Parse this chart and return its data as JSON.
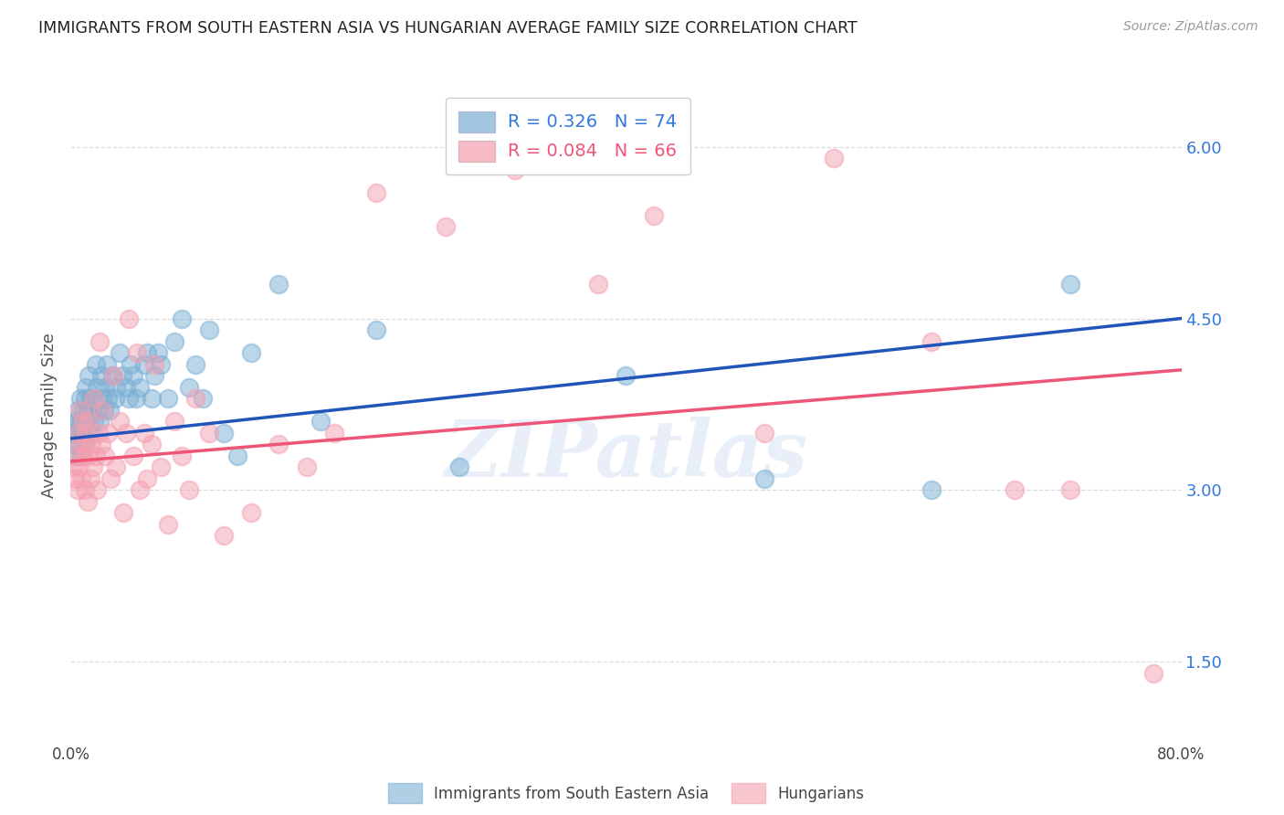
{
  "title": "IMMIGRANTS FROM SOUTH EASTERN ASIA VS HUNGARIAN AVERAGE FAMILY SIZE CORRELATION CHART",
  "source": "Source: ZipAtlas.com",
  "ylabel": "Average Family Size",
  "right_yticks": [
    1.5,
    3.0,
    4.5,
    6.0
  ],
  "right_ytick_labels": [
    "1.50",
    "3.00",
    "4.50",
    "6.00"
  ],
  "blue_R": 0.326,
  "blue_N": 74,
  "pink_R": 0.084,
  "pink_N": 66,
  "blue_color": "#7BAFD4",
  "pink_color": "#F4A0B0",
  "blue_line_color": "#2255BB",
  "pink_line_color": "#EE5577",
  "legend1_label": "Immigrants from South Eastern Asia",
  "legend2_label": "Hungarians",
  "title_color": "#222222",
  "right_tick_color": "#3377DD",
  "watermark_text": "ZIPatlas",
  "xmin": 0.0,
  "xmax": 0.8,
  "ymin": 0.8,
  "ymax": 6.5,
  "blue_line_x0": 0.0,
  "blue_line_y0": 3.45,
  "blue_line_x1": 0.8,
  "blue_line_y1": 4.5,
  "pink_line_x0": 0.0,
  "pink_line_y0": 3.25,
  "pink_line_x1": 0.8,
  "pink_line_y1": 4.05,
  "blue_scatter_x": [
    0.002,
    0.003,
    0.004,
    0.004,
    0.005,
    0.005,
    0.006,
    0.006,
    0.007,
    0.007,
    0.008,
    0.008,
    0.009,
    0.009,
    0.01,
    0.01,
    0.01,
    0.011,
    0.011,
    0.012,
    0.012,
    0.013,
    0.013,
    0.014,
    0.015,
    0.015,
    0.016,
    0.017,
    0.018,
    0.019,
    0.02,
    0.021,
    0.022,
    0.023,
    0.024,
    0.025,
    0.026,
    0.027,
    0.028,
    0.03,
    0.032,
    0.033,
    0.035,
    0.037,
    0.04,
    0.042,
    0.043,
    0.045,
    0.047,
    0.05,
    0.053,
    0.055,
    0.058,
    0.06,
    0.063,
    0.065,
    0.07,
    0.075,
    0.08,
    0.085,
    0.09,
    0.095,
    0.1,
    0.11,
    0.12,
    0.13,
    0.15,
    0.18,
    0.22,
    0.28,
    0.4,
    0.5,
    0.62,
    0.72
  ],
  "blue_scatter_y": [
    3.4,
    3.5,
    3.3,
    3.6,
    3.5,
    3.7,
    3.4,
    3.6,
    3.5,
    3.8,
    3.3,
    3.6,
    3.5,
    3.7,
    3.4,
    3.5,
    3.8,
    3.6,
    3.9,
    3.5,
    3.7,
    3.6,
    4.0,
    3.8,
    3.5,
    3.7,
    3.8,
    3.6,
    4.1,
    3.9,
    3.7,
    3.6,
    4.0,
    3.8,
    3.7,
    3.9,
    4.1,
    3.8,
    3.7,
    4.0,
    3.8,
    3.9,
    4.2,
    4.0,
    3.9,
    3.8,
    4.1,
    4.0,
    3.8,
    3.9,
    4.1,
    4.2,
    3.8,
    4.0,
    4.2,
    4.1,
    3.8,
    4.3,
    4.5,
    3.9,
    4.1,
    3.8,
    4.4,
    3.5,
    3.3,
    4.2,
    4.8,
    3.6,
    4.4,
    3.2,
    4.0,
    3.1,
    3.0,
    4.8
  ],
  "pink_scatter_x": [
    0.002,
    0.003,
    0.004,
    0.005,
    0.005,
    0.006,
    0.007,
    0.007,
    0.008,
    0.009,
    0.009,
    0.01,
    0.01,
    0.011,
    0.012,
    0.012,
    0.013,
    0.014,
    0.015,
    0.016,
    0.017,
    0.018,
    0.019,
    0.02,
    0.021,
    0.022,
    0.023,
    0.025,
    0.027,
    0.029,
    0.031,
    0.033,
    0.035,
    0.038,
    0.04,
    0.042,
    0.045,
    0.048,
    0.05,
    0.053,
    0.055,
    0.058,
    0.06,
    0.065,
    0.07,
    0.075,
    0.08,
    0.085,
    0.09,
    0.1,
    0.11,
    0.13,
    0.15,
    0.17,
    0.19,
    0.22,
    0.27,
    0.32,
    0.38,
    0.42,
    0.5,
    0.55,
    0.62,
    0.68,
    0.72,
    0.78
  ],
  "pink_scatter_y": [
    3.2,
    3.1,
    3.3,
    3.0,
    3.5,
    3.2,
    3.4,
    3.7,
    3.1,
    3.3,
    3.6,
    3.0,
    3.4,
    3.5,
    2.9,
    3.3,
    3.6,
    3.1,
    3.4,
    3.2,
    3.8,
    3.3,
    3.0,
    3.5,
    4.3,
    3.4,
    3.7,
    3.3,
    3.5,
    3.1,
    4.0,
    3.2,
    3.6,
    2.8,
    3.5,
    4.5,
    3.3,
    4.2,
    3.0,
    3.5,
    3.1,
    3.4,
    4.1,
    3.2,
    2.7,
    3.6,
    3.3,
    3.0,
    3.8,
    3.5,
    2.6,
    2.8,
    3.4,
    3.2,
    3.5,
    5.6,
    5.3,
    5.8,
    4.8,
    5.4,
    3.5,
    5.9,
    4.3,
    3.0,
    3.0,
    1.4
  ]
}
